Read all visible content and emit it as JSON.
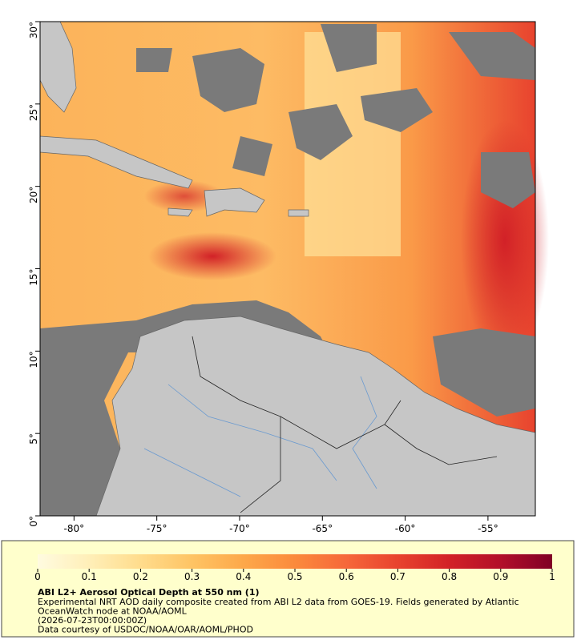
{
  "map": {
    "xlim": [
      -82.05,
      -52.14
    ],
    "ylim": [
      0,
      30
    ],
    "xticks": [
      {
        "value": -80,
        "label": "-80°"
      },
      {
        "value": -75,
        "label": "-75°"
      },
      {
        "value": -70,
        "label": "-70°"
      },
      {
        "value": -65,
        "label": "-65°"
      },
      {
        "value": -60,
        "label": "-60°"
      },
      {
        "value": -55,
        "label": "-55°"
      }
    ],
    "yticks": [
      {
        "value": 0,
        "label": "0°"
      },
      {
        "value": 5,
        "label": "5°"
      },
      {
        "value": 10,
        "label": "10°"
      },
      {
        "value": 15,
        "label": "15°"
      },
      {
        "value": 20,
        "label": "20°"
      },
      {
        "value": 25,
        "label": "25°"
      },
      {
        "value": 30,
        "label": "30°"
      }
    ]
  },
  "colorbar": {
    "lim": [
      0,
      1
    ],
    "ticks": [
      0,
      0.1,
      0.2,
      0.3,
      0.4,
      0.5,
      0.6,
      0.7,
      0.8,
      0.9,
      1
    ],
    "colors": [
      "#fffbe0",
      "#ffefb8",
      "#ffdc8c",
      "#fec464",
      "#fda84a",
      "#fb8a3c",
      "#f6673a",
      "#e8432e",
      "#d22127",
      "#b20f2a",
      "#800026"
    ]
  },
  "caption": {
    "title": "ABI L2+ Aerosol Optical Depth at 550 nm (1)",
    "lines": [
      "Experimental NRT AOD daily composite created from ABI L2 data from GOES-19. Fields generated by Atlantic",
      "OceanWatch node at NOAA/AOML",
      "(2026-07-23T00:00:00Z)",
      "Data courtesy of USDOC/NOAA/OAR/AOML/PHOD"
    ]
  }
}
